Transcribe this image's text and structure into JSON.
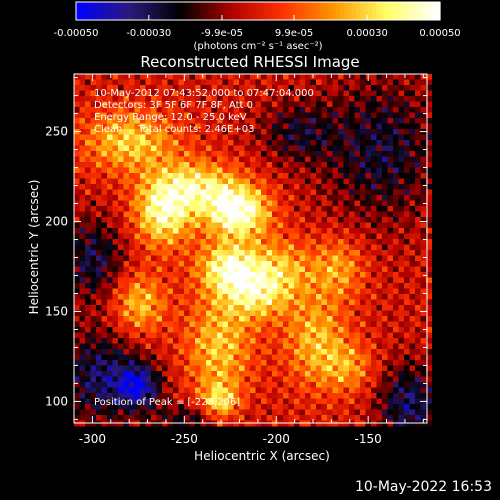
{
  "chart_data": [
    {
      "type": "colorbar",
      "scale": "linear",
      "range": [
        -0.0005,
        0.0005
      ],
      "colormap": [
        "#0000ff",
        "#2b1a7a",
        "#000000",
        "#b30000",
        "#ff3300",
        "#ff9900",
        "#ffff66",
        "#ffffff"
      ],
      "tick_values": [
        -0.0005,
        -0.0003,
        -9.9e-05,
        9.9e-05,
        0.0003,
        0.0005
      ],
      "tick_labels": [
        "-0.00050",
        "-0.00030",
        "-9.9e-05",
        "9.9e-05",
        "0.00030",
        "0.00050"
      ],
      "label": "(photons cm⁻² s⁻¹ asec⁻²)"
    },
    {
      "type": "heatmap",
      "title": "Reconstructed RHESSI Image",
      "xlabel": "Heliocentric X (arcsec)",
      "ylabel": "Heliocentric Y (arcsec)",
      "xlim": [
        -310,
        -118
      ],
      "ylim": [
        88,
        282
      ],
      "xticks": [
        -300,
        -250,
        -200,
        -150
      ],
      "yticks": [
        100,
        150,
        200,
        250
      ],
      "peak": [
        -223,
        206
      ],
      "sources": [
        {
          "x": -222,
          "y": 206,
          "value": 0.00052,
          "sx": 12,
          "sy": 10
        },
        {
          "x": -262,
          "y": 205,
          "value": 0.00042,
          "sx": 11,
          "sy": 13
        },
        {
          "x": -244,
          "y": 220,
          "value": 0.00035,
          "sx": 16,
          "sy": 10
        },
        {
          "x": -226,
          "y": 175,
          "value": 0.00044,
          "sx": 12,
          "sy": 10
        },
        {
          "x": -212,
          "y": 160,
          "value": 0.0003,
          "sx": 12,
          "sy": 10
        },
        {
          "x": -232,
          "y": 132,
          "value": 0.0003,
          "sx": 13,
          "sy": 20
        },
        {
          "x": -280,
          "y": 245,
          "value": 0.00032,
          "sx": 18,
          "sy": 12
        },
        {
          "x": -275,
          "y": 155,
          "value": 0.0003,
          "sx": 10,
          "sy": 12
        },
        {
          "x": -198,
          "y": 175,
          "value": 0.00025,
          "sx": 12,
          "sy": 12
        },
        {
          "x": -180,
          "y": 135,
          "value": 0.00028,
          "sx": 12,
          "sy": 18
        },
        {
          "x": -168,
          "y": 175,
          "value": 0.00024,
          "sx": 10,
          "sy": 12
        },
        {
          "x": -162,
          "y": 120,
          "value": 0.0002,
          "sx": 10,
          "sy": 10
        },
        {
          "x": -232,
          "y": 100,
          "value": 0.00032,
          "sx": 7,
          "sy": 8
        },
        {
          "x": -300,
          "y": 180,
          "value": -0.00026,
          "sx": 12,
          "sy": 16
        },
        {
          "x": -295,
          "y": 115,
          "value": -0.0003,
          "sx": 16,
          "sy": 18
        },
        {
          "x": -275,
          "y": 110,
          "value": -0.00036,
          "sx": 8,
          "sy": 8
        },
        {
          "x": -130,
          "y": 100,
          "value": -0.0003,
          "sx": 12,
          "sy": 16
        },
        {
          "x": -145,
          "y": 240,
          "value": -0.00024,
          "sx": 22,
          "sy": 28
        },
        {
          "x": -190,
          "y": 250,
          "value": -0.0002,
          "sx": 14,
          "sy": 12
        },
        {
          "x": -245,
          "y": 92,
          "value": -0.00022,
          "sx": 15,
          "sy": 6
        }
      ],
      "info": {
        "time_range": "10-May-2012 07:43:52.000 to 07:47:04.000",
        "detectors": "Detectors: 3F 5F 6F 7F 8F, Att 0",
        "energy": "Energy Range: 12.0 - 25.0 keV",
        "algorithm": "Clean     Total counts: 2.46E+03",
        "peak_text": "Position of Peak = [-223,206]"
      }
    }
  ],
  "footer_date": "10-May-2022 16:53",
  "colors": {
    "axes": "#ffffff",
    "background": "#000000"
  }
}
